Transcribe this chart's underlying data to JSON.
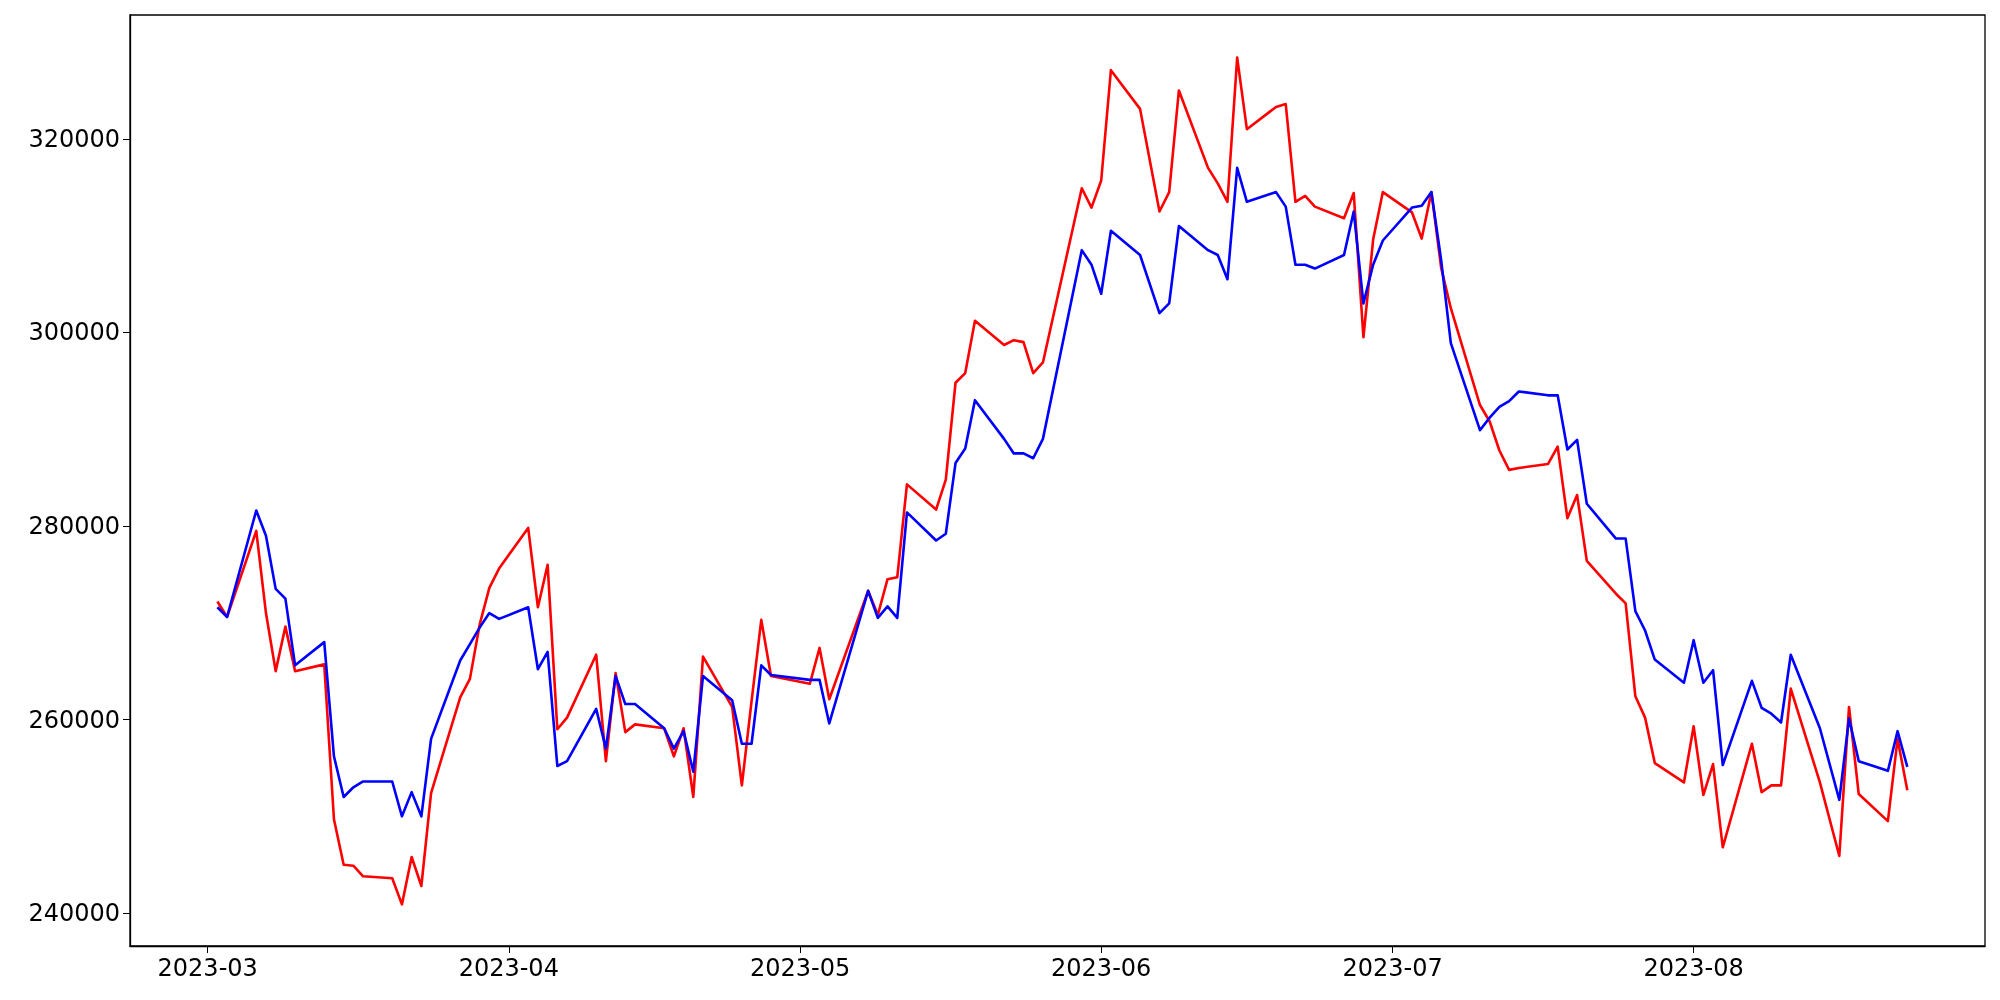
{
  "chart_data": {
    "type": "line",
    "x": [
      "2023-03-02",
      "2023-03-03",
      "2023-03-06",
      "2023-03-07",
      "2023-03-08",
      "2023-03-09",
      "2023-03-10",
      "2023-03-13",
      "2023-03-14",
      "2023-03-15",
      "2023-03-16",
      "2023-03-17",
      "2023-03-20",
      "2023-03-21",
      "2023-03-22",
      "2023-03-23",
      "2023-03-24",
      "2023-03-27",
      "2023-03-28",
      "2023-03-29",
      "2023-03-30",
      "2023-03-31",
      "2023-04-03",
      "2023-04-04",
      "2023-04-05",
      "2023-04-06",
      "2023-04-07",
      "2023-04-10",
      "2023-04-11",
      "2023-04-12",
      "2023-04-13",
      "2023-04-14",
      "2023-04-17",
      "2023-04-18",
      "2023-04-19",
      "2023-04-20",
      "2023-04-21",
      "2023-04-24",
      "2023-04-25",
      "2023-04-26",
      "2023-04-27",
      "2023-04-28",
      "2023-05-02",
      "2023-05-03",
      "2023-05-04",
      "2023-05-08",
      "2023-05-09",
      "2023-05-10",
      "2023-05-11",
      "2023-05-12",
      "2023-05-15",
      "2023-05-16",
      "2023-05-17",
      "2023-05-18",
      "2023-05-19",
      "2023-05-22",
      "2023-05-23",
      "2023-05-24",
      "2023-05-25",
      "2023-05-26",
      "2023-05-30",
      "2023-05-31",
      "2023-06-01",
      "2023-06-02",
      "2023-06-05",
      "2023-06-07",
      "2023-06-08",
      "2023-06-09",
      "2023-06-12",
      "2023-06-13",
      "2023-06-14",
      "2023-06-15",
      "2023-06-16",
      "2023-06-19",
      "2023-06-20",
      "2023-06-21",
      "2023-06-22",
      "2023-06-23",
      "2023-06-26",
      "2023-06-27",
      "2023-06-28",
      "2023-06-29",
      "2023-06-30",
      "2023-07-03",
      "2023-07-04",
      "2023-07-05",
      "2023-07-06",
      "2023-07-07",
      "2023-07-10",
      "2023-07-11",
      "2023-07-12",
      "2023-07-13",
      "2023-07-14",
      "2023-07-17",
      "2023-07-18",
      "2023-07-19",
      "2023-07-20",
      "2023-07-21",
      "2023-07-24",
      "2023-07-25",
      "2023-07-26",
      "2023-07-27",
      "2023-07-28",
      "2023-07-31",
      "2023-08-01",
      "2023-08-02",
      "2023-08-03",
      "2023-08-04",
      "2023-08-07",
      "2023-08-08",
      "2023-08-09",
      "2023-08-10",
      "2023-08-11",
      "2023-08-14",
      "2023-08-16",
      "2023-08-17",
      "2023-08-18",
      "2023-08-21",
      "2023-08-22",
      "2023-08-23"
    ],
    "series": [
      {
        "color": "#ff0000",
        "values": [
          272200,
          270600,
          279500,
          271000,
          265000,
          269600,
          265000,
          265700,
          249700,
          245000,
          244900,
          243800,
          243600,
          240900,
          245800,
          242800,
          252400,
          262300,
          264200,
          269800,
          273600,
          275600,
          279800,
          271600,
          276000,
          259000,
          260200,
          266700,
          255700,
          264800,
          258700,
          259500,
          259100,
          256200,
          259100,
          252000,
          266500,
          261300,
          253200,
          261900,
          270300,
          264500,
          263700,
          267400,
          262100,
          273300,
          270800,
          274500,
          274700,
          284300,
          281700,
          284800,
          294800,
          295800,
          301200,
          298700,
          299200,
          299000,
          295800,
          296900,
          314900,
          312900,
          315700,
          327100,
          323100,
          312500,
          314500,
          325000,
          317000,
          315400,
          313500,
          328400,
          321000,
          323300,
          323600,
          313500,
          314100,
          313000,
          311800,
          314400,
          299500,
          309600,
          314500,
          312400,
          309700,
          314500,
          306700,
          302500,
          292500,
          290800,
          287800,
          285800,
          286000,
          286400,
          288200,
          280800,
          283200,
          276400,
          273000,
          272000,
          262400,
          260200,
          255500,
          253500,
          259300,
          252200,
          255400,
          246800,
          257500,
          252500,
          253200,
          253200,
          263200,
          253500,
          245900,
          261300,
          252300,
          249500,
          258000,
          252700
        ]
      },
      {
        "color": "#0000ff",
        "values": [
          271600,
          270600,
          281600,
          279000,
          273500,
          272500,
          265600,
          268000,
          256200,
          252000,
          253000,
          253600,
          253600,
          250000,
          252500,
          250000,
          258000,
          266100,
          267800,
          269500,
          271000,
          270400,
          271600,
          265200,
          267000,
          255200,
          255700,
          261100,
          257000,
          264500,
          261600,
          261600,
          259100,
          257000,
          258800,
          254600,
          264500,
          262000,
          257500,
          257500,
          265600,
          264600,
          264100,
          264100,
          259600,
          273300,
          270500,
          271700,
          270500,
          281400,
          278500,
          279200,
          286500,
          288000,
          293000,
          289000,
          287500,
          287500,
          287000,
          289000,
          308500,
          307000,
          304000,
          310500,
          308000,
          302000,
          303000,
          311000,
          308500,
          308000,
          305500,
          317000,
          313500,
          314500,
          313000,
          307000,
          307000,
          306600,
          308000,
          312500,
          303000,
          307000,
          309500,
          312900,
          313100,
          314500,
          307500,
          298900,
          289900,
          291200,
          292300,
          292900,
          293900,
          293500,
          293500,
          287900,
          288900,
          282300,
          278700,
          278700,
          271200,
          269200,
          266200,
          263800,
          268200,
          263800,
          265100,
          255300,
          264000,
          261200,
          260600,
          259700,
          266700,
          259100,
          251700,
          260100,
          255700,
          254700,
          258800,
          255100
        ]
      }
    ],
    "xlim": [
      "2023-02-21",
      "2023-08-31"
    ],
    "xticks": [
      "2023-03",
      "2023-04",
      "2023-05",
      "2023-06",
      "2023-07",
      "2023-08"
    ],
    "ylim": [
      236600,
      332800
    ],
    "yticks": [
      240000,
      260000,
      280000,
      300000,
      320000
    ],
    "grid": false,
    "marker": "none",
    "line_style": "solid"
  }
}
